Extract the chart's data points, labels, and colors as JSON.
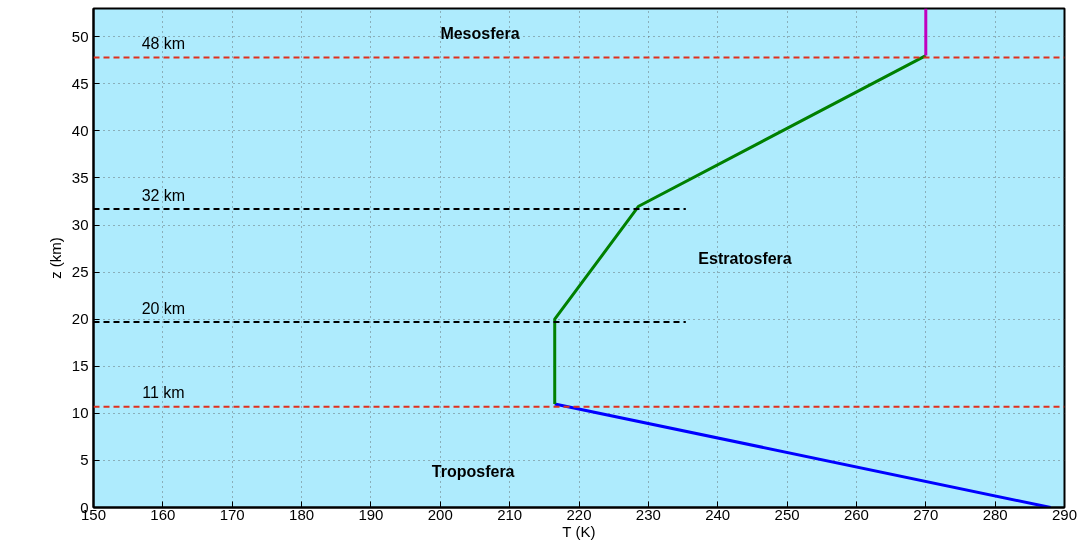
{
  "chart_data": {
    "type": "line",
    "xlabel": "T (K)",
    "ylabel": "z (km)",
    "xlim": [
      150,
      290
    ],
    "ylim": [
      0,
      53
    ],
    "xticks": [
      150,
      160,
      170,
      180,
      190,
      200,
      210,
      220,
      230,
      240,
      250,
      260,
      270,
      280,
      290
    ],
    "yticks": [
      0,
      5,
      10,
      15,
      20,
      25,
      30,
      35,
      40,
      45,
      50
    ],
    "grid": true,
    "line_style": "solid",
    "series": [
      {
        "color": "#0000ff",
        "x": [
          288,
          216.5
        ],
        "values": [
          0,
          11
        ]
      },
      {
        "color": "#008000",
        "x": [
          216.5,
          216.5,
          228.6,
          270
        ],
        "values": [
          11,
          20,
          32,
          48
        ]
      },
      {
        "color": "#c000c0",
        "x": [
          270,
          270
        ],
        "values": [
          48,
          53
        ]
      },
      {
        "color": "#000000",
        "line_style": "dashed",
        "x": [
          150,
          235.4
        ],
        "values": [
          19.7,
          19.7
        ]
      },
      {
        "color": "#000000",
        "line_style": "dashed",
        "x": [
          150,
          235.4
        ],
        "values": [
          31.7,
          31.7
        ]
      }
    ],
    "ref_lines": [
      {
        "axis": "y",
        "value": 10.7,
        "color": "#e0301e",
        "line_style": "dashed"
      },
      {
        "axis": "y",
        "value": 47.8,
        "color": "#e0301e",
        "line_style": "dashed"
      }
    ],
    "annotations": [
      {
        "text": "48 km",
        "y": 47.8
      },
      {
        "text": "32 km",
        "y": 31.7
      },
      {
        "text": "20 km",
        "y": 19.7
      },
      {
        "text": "11 km",
        "y": 10.7
      },
      "Mesosfera",
      "Estratosfera",
      "Troposfera"
    ]
  }
}
